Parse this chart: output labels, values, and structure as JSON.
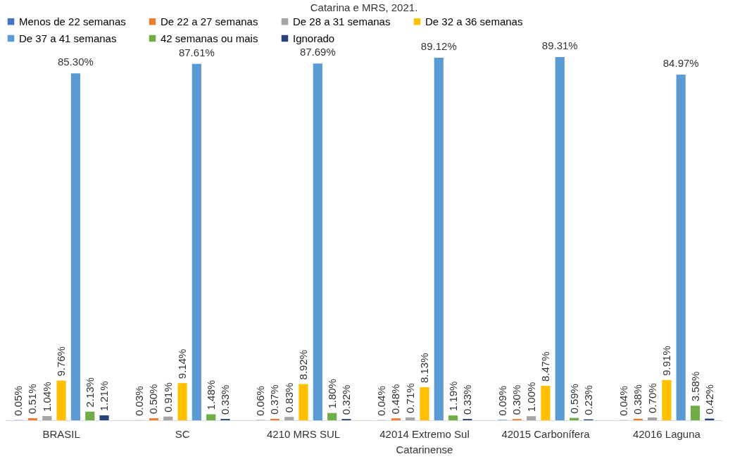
{
  "chart_data": {
    "type": "bar",
    "title": "Catarina e MRS, 2021.",
    "categories": [
      "BRASIL",
      "SC",
      "4210 MRS SUL",
      "42014 Extremo Sul Catarinense",
      "42015 Carbonífera",
      "42016 Laguna"
    ],
    "series": [
      {
        "name": "Menos de 22 semanas",
        "color": "#4472c4",
        "values": [
          0.05,
          0.03,
          0.06,
          0.04,
          0.09,
          0.04
        ],
        "value_labels": [
          "0.05%",
          "0.03%",
          "0.06%",
          "0.04%",
          "0.09%",
          "0.04%"
        ]
      },
      {
        "name": "De 22 a 27 semanas",
        "color": "#ed7d31",
        "values": [
          0.51,
          0.5,
          0.37,
          0.48,
          0.3,
          0.38
        ],
        "value_labels": [
          "0.51%",
          "0.50%",
          "0.37%",
          "0.48%",
          "0.30%",
          "0.38%"
        ]
      },
      {
        "name": "De 28 a 31 semanas",
        "color": "#a5a5a5",
        "values": [
          1.04,
          0.91,
          0.83,
          0.71,
          1.0,
          0.7
        ],
        "value_labels": [
          "1.04%",
          "0.91%",
          "0.83%",
          "0.71%",
          "1.00%",
          "0.70%"
        ]
      },
      {
        "name": "De 32 a 36 semanas",
        "color": "#ffc000",
        "values": [
          9.76,
          9.14,
          8.92,
          8.13,
          8.47,
          9.91
        ],
        "value_labels": [
          "9.76%",
          "9.14%",
          "8.92%",
          "8.13%",
          "8.47%",
          "9.91%"
        ]
      },
      {
        "name": "De 37 a 41 semanas",
        "color": "#5b9bd5",
        "values": [
          85.3,
          87.61,
          87.69,
          89.12,
          89.31,
          84.97
        ],
        "value_labels": [
          "85.30%",
          "87.61%",
          "87.69%",
          "89.12%",
          "89.31%",
          "84.97%"
        ]
      },
      {
        "name": "42 semanas ou mais",
        "color": "#70ad47",
        "values": [
          2.13,
          1.48,
          1.8,
          1.19,
          0.59,
          3.58
        ],
        "value_labels": [
          "2.13%",
          "1.48%",
          "1.80%",
          "1.19%",
          "0.59%",
          "3.58%"
        ]
      },
      {
        "name": "Ignorado",
        "color": "#264478",
        "values": [
          1.21,
          0.33,
          0.32,
          0.33,
          0.23,
          0.42
        ],
        "value_labels": [
          "1.21%",
          "0.33%",
          "0.32%",
          "0.33%",
          "0.23%",
          "0.42%"
        ]
      }
    ],
    "legend": "top"
  }
}
